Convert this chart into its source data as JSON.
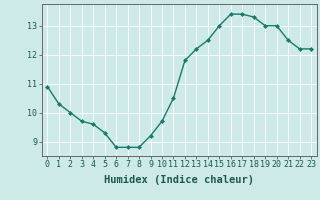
{
  "x": [
    0,
    1,
    2,
    3,
    4,
    5,
    6,
    7,
    8,
    9,
    10,
    11,
    12,
    13,
    14,
    15,
    16,
    17,
    18,
    19,
    20,
    21,
    22,
    23
  ],
  "y": [
    10.9,
    10.3,
    10.0,
    9.7,
    9.6,
    9.3,
    8.8,
    8.8,
    8.8,
    9.2,
    9.7,
    10.5,
    11.8,
    12.2,
    12.5,
    13.0,
    13.4,
    13.4,
    13.3,
    13.0,
    13.0,
    12.5,
    12.2,
    12.2
  ],
  "xlabel": "Humidex (Indice chaleur)",
  "ylim": [
    8.5,
    13.75
  ],
  "xlim": [
    -0.5,
    23.5
  ],
  "yticks": [
    9,
    10,
    11,
    12,
    13
  ],
  "xticks": [
    0,
    1,
    2,
    3,
    4,
    5,
    6,
    7,
    8,
    9,
    10,
    11,
    12,
    13,
    14,
    15,
    16,
    17,
    18,
    19,
    20,
    21,
    22,
    23
  ],
  "line_color": "#1a7a6a",
  "marker": "D",
  "marker_size": 2.0,
  "bg_color": "#ceeae8",
  "grid_color": "#ffffff",
  "axes_color": "#666666",
  "xlabel_fontsize": 7.5,
  "tick_fontsize": 6.0,
  "linewidth": 1.0
}
